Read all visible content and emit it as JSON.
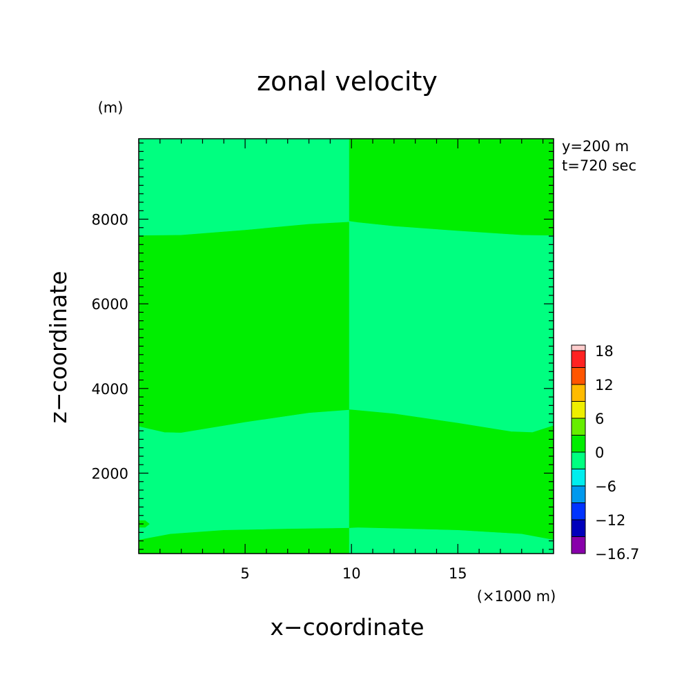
{
  "chart_data": {
    "type": "heatmap",
    "title": "zonal velocity",
    "xlabel": "x−coordinate",
    "ylabel": "z−coordinate",
    "x_unit": "(×1000 m)",
    "y_unit": "(m)",
    "info": [
      "y=200 m",
      "t=720 sec"
    ],
    "xlim": [
      0,
      19.5
    ],
    "ylim": [
      100,
      9900
    ],
    "x_ticks": [
      5,
      10,
      15
    ],
    "y_ticks": [
      2000,
      4000,
      6000,
      8000
    ],
    "x_minor_step": 1,
    "y_minor_step": 200,
    "colorbar": {
      "labels": [
        "18",
        "12",
        "6",
        "0",
        "−6",
        "−12",
        "−16.7"
      ],
      "levels": [
        -16.7,
        -15,
        -12,
        -9,
        -6,
        -3,
        0,
        3,
        6,
        9,
        12,
        15,
        18
      ],
      "colors": [
        "#8800aa",
        "#0000bb",
        "#0033ff",
        "#0099ee",
        "#00eeee",
        "#00ff80",
        "#00ee00",
        "#66ee00",
        "#eeee00",
        "#ffbb00",
        "#ff5500",
        "#ff2222"
      ],
      "top_cap_color": "#ffcccc"
    },
    "regions": [
      {
        "value_range": [
          -3,
          0
        ],
        "color": "#00ff80",
        "polygon": [
          [
            0,
            9900
          ],
          [
            9.9,
            9900
          ],
          [
            9.9,
            7930
          ],
          [
            8,
            7880
          ],
          [
            5,
            7740
          ],
          [
            2,
            7620
          ],
          [
            0,
            7610
          ]
        ]
      },
      {
        "value_range": [
          0,
          3
        ],
        "color": "#00ee00",
        "polygon": [
          [
            0,
            7610
          ],
          [
            2,
            7620
          ],
          [
            5,
            7740
          ],
          [
            8,
            7880
          ],
          [
            9.9,
            7930
          ],
          [
            9.9,
            3490
          ],
          [
            8,
            3420
          ],
          [
            5,
            3200
          ],
          [
            2,
            2950
          ],
          [
            1.2,
            2960
          ],
          [
            0,
            3100
          ]
        ]
      },
      {
        "value_range": [
          -3,
          0
        ],
        "color": "#00ff80",
        "polygon": [
          [
            0,
            3100
          ],
          [
            1.2,
            2960
          ],
          [
            2,
            2950
          ],
          [
            5,
            3200
          ],
          [
            8,
            3420
          ],
          [
            9.9,
            3490
          ],
          [
            9.9,
            700
          ],
          [
            7,
            680
          ],
          [
            4,
            650
          ],
          [
            1.5,
            560
          ],
          [
            0,
            420
          ]
        ]
      },
      {
        "value_range": [
          0,
          3
        ],
        "color": "#00ee00",
        "polygon": [
          [
            0,
            420
          ],
          [
            1.5,
            560
          ],
          [
            4,
            650
          ],
          [
            7,
            680
          ],
          [
            9.9,
            700
          ],
          [
            9.9,
            100
          ],
          [
            0,
            100
          ]
        ]
      },
      {
        "value_range": [
          0,
          3
        ],
        "color": "#00ee00",
        "polygon": [
          [
            9.9,
            9900
          ],
          [
            19.5,
            9900
          ],
          [
            19.5,
            7610
          ],
          [
            18,
            7620
          ],
          [
            15,
            7720
          ],
          [
            12,
            7830
          ],
          [
            10.3,
            7920
          ],
          [
            9.9,
            7950
          ]
        ]
      },
      {
        "value_range": [
          -3,
          0
        ],
        "color": "#00ff80",
        "polygon": [
          [
            9.9,
            7950
          ],
          [
            10.3,
            7920
          ],
          [
            12,
            7830
          ],
          [
            15,
            7720
          ],
          [
            18,
            7620
          ],
          [
            19.5,
            7610
          ],
          [
            19.5,
            3120
          ],
          [
            18.5,
            2960
          ],
          [
            17.5,
            2980
          ],
          [
            15,
            3180
          ],
          [
            12,
            3400
          ],
          [
            9.9,
            3500
          ]
        ]
      },
      {
        "value_range": [
          0,
          3
        ],
        "color": "#00ee00",
        "polygon": [
          [
            9.9,
            3500
          ],
          [
            12,
            3400
          ],
          [
            15,
            3180
          ],
          [
            17.5,
            2980
          ],
          [
            18.5,
            2960
          ],
          [
            19.5,
            3120
          ],
          [
            19.5,
            420
          ],
          [
            18,
            560
          ],
          [
            15,
            650
          ],
          [
            12,
            690
          ],
          [
            10.3,
            710
          ],
          [
            9.9,
            700
          ]
        ]
      },
      {
        "value_range": [
          -3,
          0
        ],
        "color": "#00ff80",
        "polygon": [
          [
            9.9,
            700
          ],
          [
            10.3,
            710
          ],
          [
            12,
            690
          ],
          [
            15,
            650
          ],
          [
            18,
            560
          ],
          [
            19.5,
            420
          ],
          [
            19.5,
            100
          ],
          [
            9.9,
            100
          ]
        ]
      },
      {
        "value_range": [
          0,
          3
        ],
        "color": "#00ee00",
        "polygon": [
          [
            0,
            880
          ],
          [
            0.3,
            880
          ],
          [
            0.5,
            800
          ],
          [
            0.3,
            720
          ],
          [
            0,
            720
          ]
        ]
      }
    ]
  }
}
